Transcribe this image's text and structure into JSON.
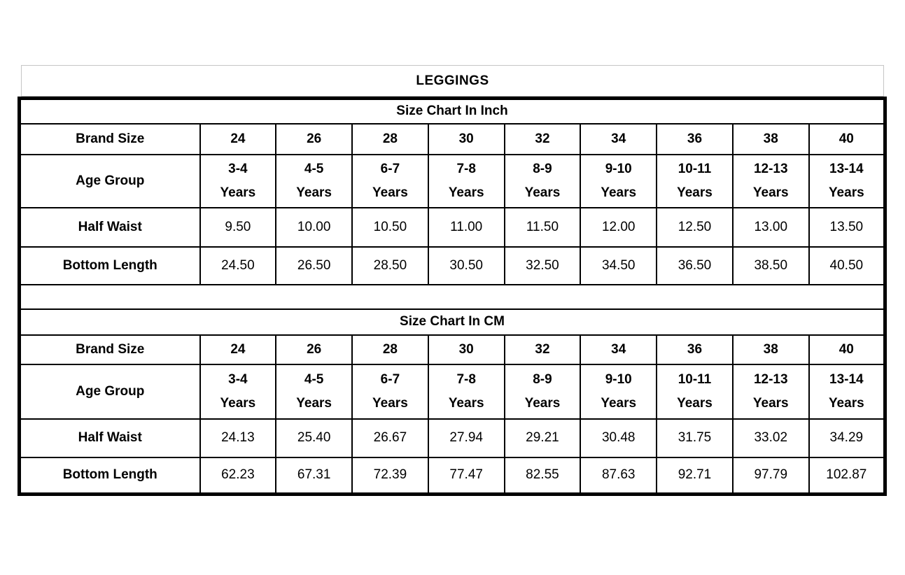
{
  "title": "LEGGINGS",
  "colors": {
    "table_border": "#000000",
    "title_border": "#c6c6c6",
    "text": "#000000",
    "background": "#ffffff"
  },
  "chart_data": {
    "type": "table",
    "title": "LEGGINGS",
    "tables": [
      {
        "header": "Size Chart In Inch",
        "rows": [
          {
            "label": "Brand Size",
            "values": [
              "24",
              "26",
              "28",
              "30",
              "32",
              "34",
              "36",
              "38",
              "40"
            ]
          },
          {
            "label": "Age Group",
            "unit": "Years",
            "values": [
              "3-4",
              "4-5",
              "6-7",
              "7-8",
              "8-9",
              "9-10",
              "10-11",
              "12-13",
              "13-14"
            ]
          },
          {
            "label": "Half Waist",
            "values": [
              "9.50",
              "10.00",
              "10.50",
              "11.00",
              "11.50",
              "12.00",
              "12.50",
              "13.00",
              "13.50"
            ]
          },
          {
            "label": "Bottom Length",
            "values": [
              "24.50",
              "26.50",
              "28.50",
              "30.50",
              "32.50",
              "34.50",
              "36.50",
              "38.50",
              "40.50"
            ]
          }
        ]
      },
      {
        "header": "Size Chart In CM",
        "rows": [
          {
            "label": "Brand Size",
            "values": [
              "24",
              "26",
              "28",
              "30",
              "32",
              "34",
              "36",
              "38",
              "40"
            ]
          },
          {
            "label": "Age Group",
            "unit": "Years",
            "values": [
              "3-4",
              "4-5",
              "6-7",
              "7-8",
              "8-9",
              "9-10",
              "10-11",
              "12-13",
              "13-14"
            ]
          },
          {
            "label": "Half Waist",
            "values": [
              "24.13",
              "25.40",
              "26.67",
              "27.94",
              "29.21",
              "30.48",
              "31.75",
              "33.02",
              "34.29"
            ]
          },
          {
            "label": "Bottom Length",
            "values": [
              "62.23",
              "67.31",
              "72.39",
              "77.47",
              "82.55",
              "87.63",
              "92.71",
              "97.79",
              "102.87"
            ]
          }
        ]
      }
    ]
  }
}
